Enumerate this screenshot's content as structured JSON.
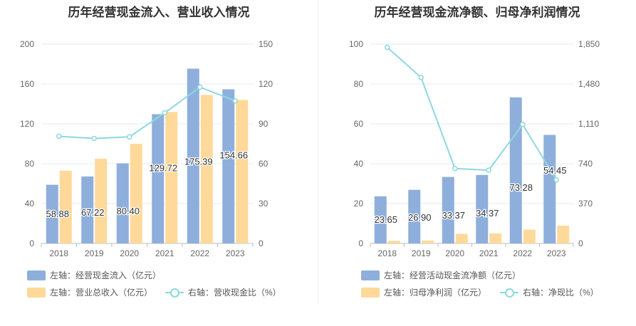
{
  "chart_data": [
    {
      "type": "bar",
      "title": "历年经营现金流入、营业收入情况",
      "categories": [
        "2018",
        "2019",
        "2020",
        "2021",
        "2022",
        "2023"
      ],
      "series": [
        {
          "name": "左轴：经营现金流入（亿元）",
          "axis": "left",
          "kind": "bar",
          "color": "#8eafdc",
          "values": [
            58.88,
            67.22,
            80.4,
            129.72,
            175.39,
            154.66
          ],
          "labels": [
            "58.88",
            "67.22",
            "80.40",
            "129.72",
            "175.39",
            "154.66"
          ]
        },
        {
          "name": "左轴：营业总收入（亿元）",
          "axis": "left",
          "kind": "bar",
          "color": "#ffd99a",
          "values": [
            73,
            85,
            100,
            132,
            149,
            144
          ]
        },
        {
          "name": "右轴：营收现金比（%）",
          "axis": "right",
          "kind": "line",
          "color": "#8ed8de",
          "values": [
            80.6,
            79.0,
            80.2,
            98.3,
            117.6,
            107.3
          ]
        }
      ],
      "left_axis": {
        "ticks": [
          "0",
          "40",
          "80",
          "120",
          "160",
          "200"
        ],
        "min": 0,
        "max": 200
      },
      "right_axis": {
        "ticks": [
          "0",
          "30",
          "60",
          "90",
          "120",
          "150"
        ],
        "min": 0,
        "max": 150
      },
      "grid": true,
      "legend_position": "bottom-left"
    },
    {
      "type": "bar",
      "title": "历年经营现金流净额、归母净利润情况",
      "categories": [
        "2018",
        "2019",
        "2020",
        "2021",
        "2022",
        "2023"
      ],
      "series": [
        {
          "name": "左轴：经营活动现金流净额（亿元）",
          "axis": "left",
          "kind": "bar",
          "color": "#8eafdc",
          "values": [
            23.65,
            26.9,
            33.37,
            34.37,
            73.28,
            54.45
          ],
          "labels": [
            "23.65",
            "26.90",
            "33.37",
            "34.37",
            "73.28",
            "54.45"
          ]
        },
        {
          "name": "左轴：归母净利润（亿元）",
          "axis": "left",
          "kind": "bar",
          "color": "#ffd99a",
          "values": [
            1.3,
            1.5,
            4.8,
            5.0,
            6.9,
            8.9
          ]
        },
        {
          "name": "右轴：净现比（%）",
          "axis": "right",
          "kind": "line",
          "color": "#8ed8de",
          "values": [
            1820,
            1540,
            695,
            680,
            1105,
            590
          ]
        }
      ],
      "left_axis": {
        "ticks": [
          "0",
          "20",
          "40",
          "60",
          "80",
          "100"
        ],
        "min": 0,
        "max": 100
      },
      "right_axis": {
        "ticks": [
          "0",
          "370",
          "740",
          "1,110",
          "1,480",
          "1,850"
        ],
        "min": 0,
        "max": 1850
      },
      "grid": true,
      "legend_position": "bottom-left"
    }
  ]
}
